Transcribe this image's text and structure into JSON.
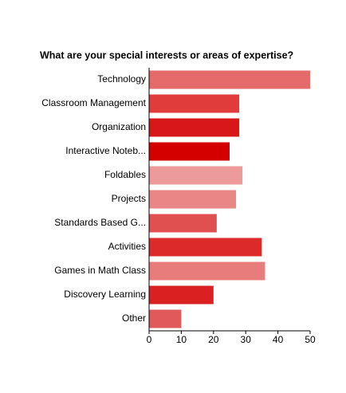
{
  "chart_data": {
    "type": "bar",
    "orientation": "horizontal",
    "title": "What are your special interests or areas of expertise?",
    "categories": [
      "Technology",
      "Classroom Management",
      "Organization",
      "Interactive Noteb...",
      "Foldables",
      "Projects",
      "Standards Based G...",
      "Activities",
      "Games in Math Class",
      "Discovery Learning",
      "Other"
    ],
    "values": [
      50,
      28,
      28,
      25,
      29,
      27,
      21,
      35,
      36,
      20,
      10
    ],
    "colors": [
      "#e56b6b",
      "#e03c3c",
      "#d81818",
      "#d40000",
      "#ec9a9a",
      "#e98787",
      "#e05050",
      "#dc2a2a",
      "#e87c7c",
      "#da2020",
      "#e05a5a"
    ],
    "xlim": [
      0,
      50
    ],
    "xticks": [
      0,
      10,
      20,
      30,
      40,
      50
    ],
    "grid": false
  }
}
